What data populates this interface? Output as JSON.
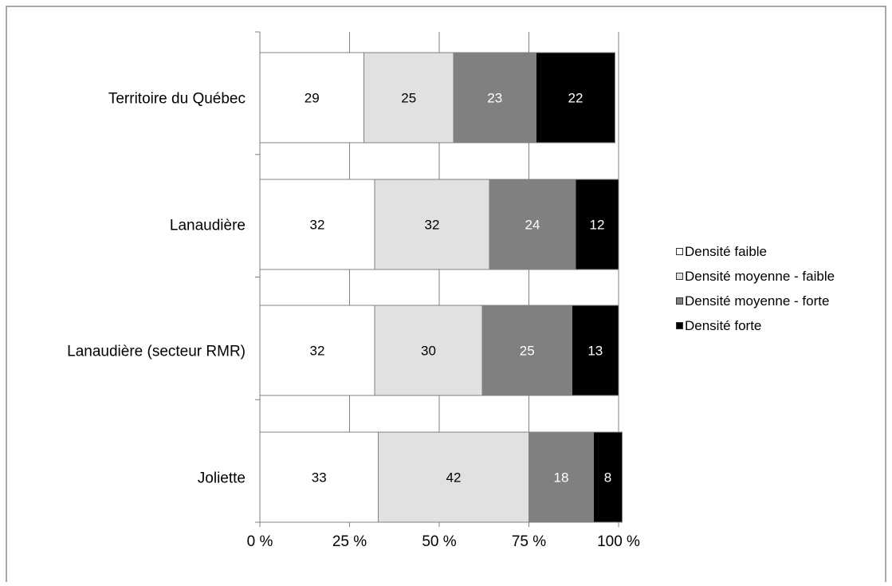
{
  "chart_data": {
    "type": "bar",
    "orientation": "horizontal",
    "stacked": "percent",
    "categories": [
      "Territoire du Québec",
      "Lanaudière",
      "Lanaudière (secteur RMR)",
      "Joliette"
    ],
    "series": [
      {
        "name": "Densité faible",
        "color": "#ffffff",
        "label_color": "#000000",
        "values": [
          29,
          32,
          32,
          33
        ]
      },
      {
        "name": "Densité moyenne - faible",
        "color": "#e1e1e1",
        "label_color": "#000000",
        "values": [
          25,
          32,
          30,
          42
        ]
      },
      {
        "name": "Densité moyenne - forte",
        "color": "#808080",
        "label_color": "#ffffff",
        "values": [
          23,
          24,
          25,
          18
        ]
      },
      {
        "name": "Densité forte",
        "color": "#000000",
        "label_color": "#ffffff",
        "values": [
          22,
          12,
          13,
          8
        ]
      }
    ],
    "x_ticks": [
      "0 %",
      "25 %",
      "50 %",
      "75 %",
      "100 %"
    ],
    "xlim": [
      0,
      100
    ],
    "grid": true,
    "legend_position": "right"
  }
}
